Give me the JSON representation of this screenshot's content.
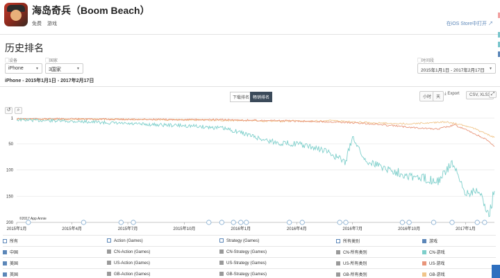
{
  "app": {
    "name": "海岛奇兵（Boom Beach）",
    "price": "免费",
    "category": "游戏",
    "ios_link": "在iOS Store中打开"
  },
  "page_title": "历史排名",
  "filters": {
    "device_label": "设备",
    "device_value": "iPhone",
    "country_label": "国家",
    "country_value": "3国家",
    "period_label": "时间段",
    "period_value": "2015年1月1日 - 2017年2月17日"
  },
  "range_caption": "iPhone - 2015年1月1日 - 2017年2月17日",
  "chart_toolbar": {
    "download_rank": "下载排名",
    "revenue_rank": "畅销排名",
    "hourly": "小时",
    "daily": "天",
    "export": "Export",
    "csv": "CSV, XLSX"
  },
  "watermark": "©2017 App Annie",
  "colors": {
    "cn": "#7ecfcb",
    "us": "#e8957a",
    "gb": "#f0c58a",
    "gray": "#999999"
  },
  "chart_data": {
    "type": "line",
    "y_axis": {
      "reversed": true,
      "ticks": [
        1,
        50,
        100,
        150,
        200
      ],
      "range": [
        1,
        200
      ]
    },
    "x_ticks": [
      "2015年1月",
      "2015年4月",
      "2015年7月",
      "2015年10月",
      "2016年1月",
      "2016年4月",
      "2016年7月",
      "2016年10月",
      "2017年1月"
    ],
    "x_tick_dates": [
      "2015-01-01",
      "2015-04-01",
      "2015-07-01",
      "2015-10-01",
      "2016-01-01",
      "2016-04-01",
      "2016-07-01",
      "2016-10-01",
      "2017-01-01"
    ],
    "x_range": [
      "2015-01-01",
      "2017-02-17"
    ],
    "series": [
      {
        "name": "CN-游戏",
        "color": "#7ecfcb",
        "points": [
          [
            "2015-01-01",
            4
          ],
          [
            "2015-03-01",
            6
          ],
          [
            "2015-05-01",
            8
          ],
          [
            "2015-07-01",
            12
          ],
          [
            "2015-09-01",
            14
          ],
          [
            "2015-10-15",
            16
          ],
          [
            "2015-12-01",
            20
          ],
          [
            "2016-01-01",
            28
          ],
          [
            "2016-02-01",
            40
          ],
          [
            "2016-03-01",
            48
          ],
          [
            "2016-04-01",
            50
          ],
          [
            "2016-05-15",
            62
          ],
          [
            "2016-06-20",
            85
          ],
          [
            "2016-07-01",
            35
          ],
          [
            "2016-07-20",
            80
          ],
          [
            "2016-09-01",
            100
          ],
          [
            "2016-10-15",
            115
          ],
          [
            "2016-11-20",
            120
          ],
          [
            "2016-12-10",
            85
          ],
          [
            "2016-12-31",
            145
          ],
          [
            "2017-01-20",
            135
          ],
          [
            "2017-02-08",
            185
          ],
          [
            "2017-02-17",
            140
          ]
        ]
      },
      {
        "name": "US-游戏",
        "color": "#e8957a",
        "points": [
          [
            "2015-01-01",
            2
          ],
          [
            "2015-06-01",
            3
          ],
          [
            "2015-12-01",
            4
          ],
          [
            "2016-03-01",
            6
          ],
          [
            "2016-06-01",
            8
          ],
          [
            "2016-08-01",
            12
          ],
          [
            "2016-10-01",
            18
          ],
          [
            "2016-11-15",
            22
          ],
          [
            "2016-12-15",
            14
          ],
          [
            "2017-01-10",
            28
          ],
          [
            "2017-02-01",
            40
          ],
          [
            "2017-02-17",
            55
          ]
        ]
      },
      {
        "name": "GB-游戏",
        "color": "#f0c58a",
        "points": [
          [
            "2015-01-01",
            3
          ],
          [
            "2015-06-01",
            3
          ],
          [
            "2015-12-01",
            5
          ],
          [
            "2016-03-01",
            7
          ],
          [
            "2016-06-01",
            6
          ],
          [
            "2016-08-01",
            10
          ],
          [
            "2016-10-01",
            12
          ],
          [
            "2016-12-01",
            8
          ],
          [
            "2017-01-10",
            18
          ],
          [
            "2017-02-01",
            30
          ],
          [
            "2017-02-17",
            38
          ]
        ]
      }
    ]
  },
  "legend": {
    "headers": [
      "所有",
      "Action (Games)",
      "Strategy (Games)",
      "所有类别",
      "游戏"
    ],
    "rows": [
      [
        "中国",
        "CN-Action (Games)",
        "CN-Strategy (Games)",
        "CN-所有类别",
        "CN-游戏"
      ],
      [
        "美国",
        "US-Action (Games)",
        "US-Strategy (Games)",
        "US-所有类别",
        "US-游戏"
      ],
      [
        "英国",
        "GB-Action (Games)",
        "GB-Strategy (Games)",
        "GB-所有类别",
        "GB-游戏"
      ]
    ]
  }
}
